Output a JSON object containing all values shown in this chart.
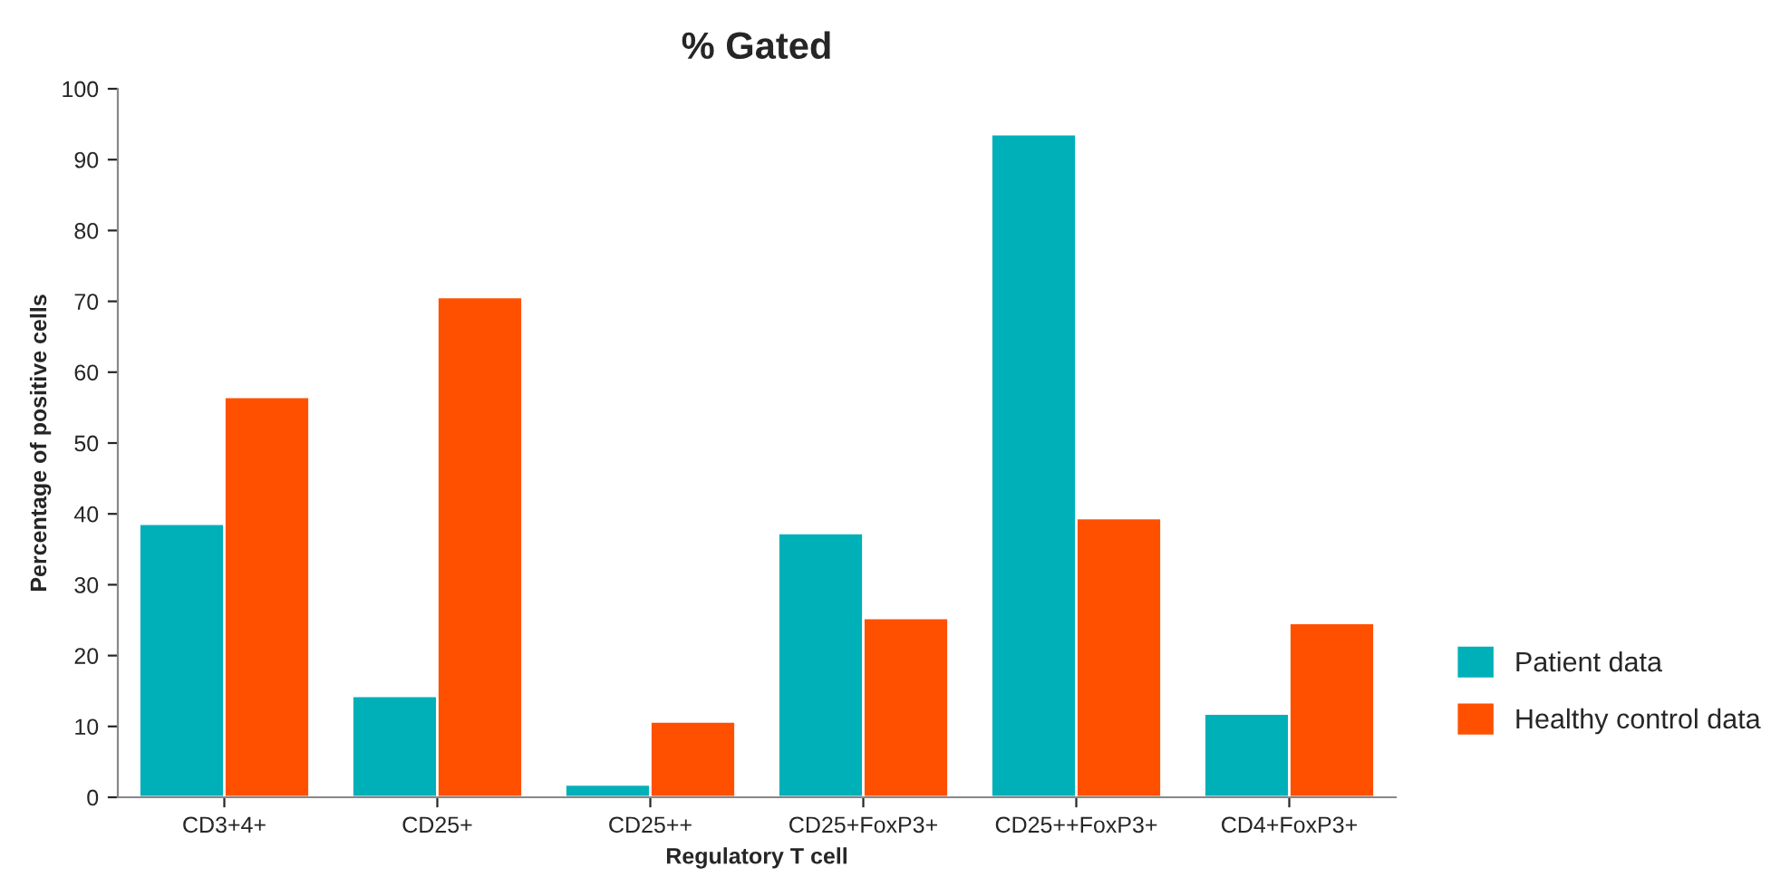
{
  "chart_data": {
    "type": "bar",
    "title": "% Gated",
    "xlabel": "Regulatory T cell",
    "ylabel": "Percentage of positive cells",
    "categories": [
      "CD3+4+",
      "CD25+",
      "CD25++",
      "CD25+FoxP3+",
      "CD25++FoxP3+",
      "CD4+FoxP3+"
    ],
    "series": [
      {
        "name": "Patient data",
        "color": "#00b0b9",
        "values": [
          38.6,
          14.3,
          1.8,
          37.3,
          93.6,
          11.8
        ]
      },
      {
        "name": "Healthy control data",
        "color": "#ff5000",
        "values": [
          56.5,
          70.6,
          10.7,
          25.3,
          39.4,
          24.6
        ]
      }
    ],
    "ylim": [
      0,
      100
    ],
    "yticks": [
      0,
      10,
      20,
      30,
      40,
      50,
      60,
      70,
      80,
      90,
      100
    ],
    "grid": false,
    "legend": "right"
  }
}
